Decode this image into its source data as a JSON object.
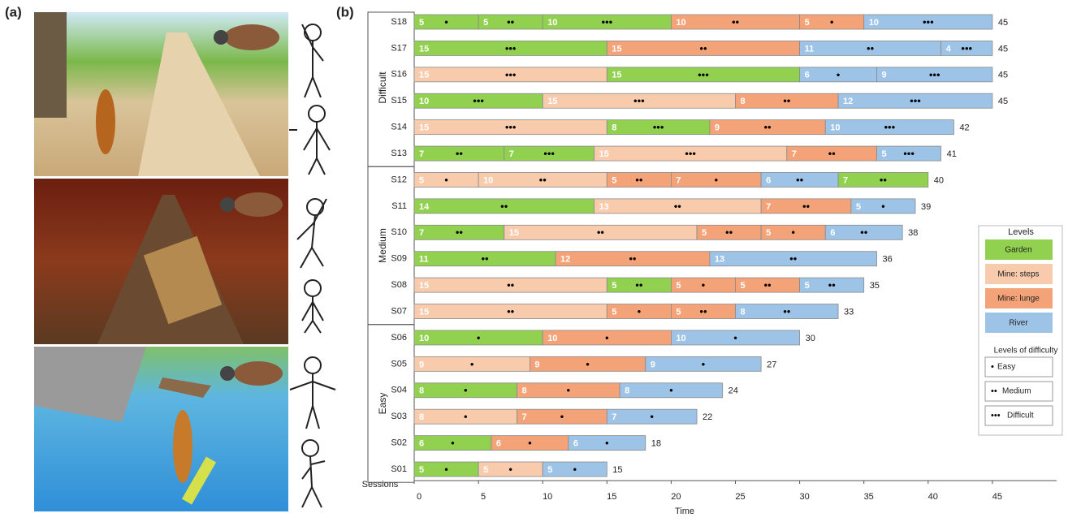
{
  "panels": {
    "a": "(a)",
    "b": "(b)"
  },
  "chart_data": {
    "type": "bar",
    "orientation": "horizontal",
    "stacked": true,
    "categories": [
      "S18",
      "S17",
      "S16",
      "S15",
      "S14",
      "S13",
      "S12",
      "S11",
      "S10",
      "S09",
      "S08",
      "S07",
      "S06",
      "S05",
      "S04",
      "S03",
      "S02",
      "S01"
    ],
    "y_label": "Sessions",
    "x_label": "Time",
    "xlim": [
      0,
      50
    ],
    "xticks": [
      0,
      5,
      10,
      15,
      20,
      25,
      30,
      35,
      40,
      45
    ],
    "levels": [
      {
        "name": "Garden",
        "color": "#92d050"
      },
      {
        "name": "Mine: steps",
        "color": "#f8cbad"
      },
      {
        "name": "Mine: lunge",
        "color": "#f4a378"
      },
      {
        "name": "River",
        "color": "#9dc3e6"
      }
    ],
    "levels_title": "Levels",
    "difficulty_title": "Levels of difficulty",
    "difficulty_legend": [
      {
        "marker": "•",
        "label": "Easy"
      },
      {
        "marker": "••",
        "label": "Medium"
      },
      {
        "marker": "•••",
        "label": "Difficult"
      }
    ],
    "groups": [
      {
        "name": "Difficult",
        "from": "S18",
        "to": "S13"
      },
      {
        "name": "Medium",
        "from": "S12",
        "to": "S07"
      },
      {
        "name": "Easy",
        "from": "S06",
        "to": "S01"
      }
    ],
    "segments": [
      [
        {
          "level": "Garden",
          "value": 5,
          "difficulty": "•"
        },
        {
          "level": "Garden",
          "value": 5,
          "difficulty": "••"
        },
        {
          "level": "Garden",
          "value": 10,
          "difficulty": "•••"
        },
        {
          "level": "Mine: lunge",
          "value": 10,
          "difficulty": "••"
        },
        {
          "level": "Mine: lunge",
          "value": 5,
          "difficulty": "•"
        },
        {
          "level": "River",
          "value": 10,
          "difficulty": "•••"
        }
      ],
      [
        {
          "level": "Garden",
          "value": 15,
          "difficulty": "•••"
        },
        {
          "level": "Mine: lunge",
          "value": 15,
          "difficulty": "••"
        },
        {
          "level": "River",
          "value": 11,
          "difficulty": "••"
        },
        {
          "level": "River",
          "value": 4,
          "difficulty": "•••"
        }
      ],
      [
        {
          "level": "Mine: steps",
          "value": 15,
          "difficulty": "•••"
        },
        {
          "level": "Garden",
          "value": 15,
          "difficulty": "•••"
        },
        {
          "level": "River",
          "value": 6,
          "difficulty": "•"
        },
        {
          "level": "River",
          "value": 9,
          "difficulty": "•••"
        }
      ],
      [
        {
          "level": "Garden",
          "value": 10,
          "difficulty": "•••"
        },
        {
          "level": "Mine: steps",
          "value": 15,
          "difficulty": "•••"
        },
        {
          "level": "Mine: lunge",
          "value": 8,
          "difficulty": "••"
        },
        {
          "level": "River",
          "value": 12,
          "difficulty": "•••"
        }
      ],
      [
        {
          "level": "Mine: steps",
          "value": 15,
          "difficulty": "•••"
        },
        {
          "level": "Garden",
          "value": 8,
          "difficulty": "•••"
        },
        {
          "level": "Mine: lunge",
          "value": 9,
          "difficulty": "••"
        },
        {
          "level": "River",
          "value": 10,
          "difficulty": "•••"
        }
      ],
      [
        {
          "level": "Garden",
          "value": 7,
          "difficulty": "••"
        },
        {
          "level": "Garden",
          "value": 7,
          "difficulty": "•••"
        },
        {
          "level": "Mine: steps",
          "value": 15,
          "difficulty": "•••"
        },
        {
          "level": "Mine: lunge",
          "value": 7,
          "difficulty": "••"
        },
        {
          "level": "River",
          "value": 5,
          "difficulty": "•••"
        }
      ],
      [
        {
          "level": "Mine: steps",
          "value": 5,
          "difficulty": "•"
        },
        {
          "level": "Mine: steps",
          "value": 10,
          "difficulty": "••"
        },
        {
          "level": "Mine: lunge",
          "value": 5,
          "difficulty": "••"
        },
        {
          "level": "Mine: lunge",
          "value": 7,
          "difficulty": "•"
        },
        {
          "level": "River",
          "value": 6,
          "difficulty": "••"
        },
        {
          "level": "Garden",
          "value": 7,
          "difficulty": "••"
        }
      ],
      [
        {
          "level": "Garden",
          "value": 14,
          "difficulty": "••"
        },
        {
          "level": "Mine: steps",
          "value": 13,
          "difficulty": "••"
        },
        {
          "level": "Mine: lunge",
          "value": 7,
          "difficulty": "••"
        },
        {
          "level": "River",
          "value": 5,
          "difficulty": "•"
        }
      ],
      [
        {
          "level": "Garden",
          "value": 7,
          "difficulty": "••"
        },
        {
          "level": "Mine: steps",
          "value": 15,
          "difficulty": "••"
        },
        {
          "level": "Mine: lunge",
          "value": 5,
          "difficulty": "••"
        },
        {
          "level": "Mine: lunge",
          "value": 5,
          "difficulty": "•"
        },
        {
          "level": "River",
          "value": 6,
          "difficulty": "••"
        }
      ],
      [
        {
          "level": "Garden",
          "value": 11,
          "difficulty": "••"
        },
        {
          "level": "Mine: lunge",
          "value": 12,
          "difficulty": "••"
        },
        {
          "level": "River",
          "value": 13,
          "difficulty": "••"
        }
      ],
      [
        {
          "level": "Mine: steps",
          "value": 15,
          "difficulty": "••"
        },
        {
          "level": "Garden",
          "value": 5,
          "difficulty": "••"
        },
        {
          "level": "Mine: lunge",
          "value": 5,
          "difficulty": "•"
        },
        {
          "level": "Mine: lunge",
          "value": 5,
          "difficulty": "••"
        },
        {
          "level": "River",
          "value": 5,
          "difficulty": "••"
        }
      ],
      [
        {
          "level": "Mine: steps",
          "value": 15,
          "difficulty": "••"
        },
        {
          "level": "Mine: lunge",
          "value": 5,
          "difficulty": "•"
        },
        {
          "level": "Mine: lunge",
          "value": 5,
          "difficulty": "••"
        },
        {
          "level": "River",
          "value": 8,
          "difficulty": "••"
        }
      ],
      [
        {
          "level": "Garden",
          "value": 10,
          "difficulty": "•"
        },
        {
          "level": "Mine: lunge",
          "value": 10,
          "difficulty": "•"
        },
        {
          "level": "River",
          "value": 10,
          "difficulty": "•"
        }
      ],
      [
        {
          "level": "Mine: steps",
          "value": 9,
          "difficulty": "•"
        },
        {
          "level": "Mine: lunge",
          "value": 9,
          "difficulty": "•"
        },
        {
          "level": "River",
          "value": 9,
          "difficulty": "•"
        }
      ],
      [
        {
          "level": "Garden",
          "value": 8,
          "difficulty": "•"
        },
        {
          "level": "Mine: lunge",
          "value": 8,
          "difficulty": "•"
        },
        {
          "level": "River",
          "value": 8,
          "difficulty": "•"
        }
      ],
      [
        {
          "level": "Mine: steps",
          "value": 8,
          "difficulty": "•"
        },
        {
          "level": "Mine: lunge",
          "value": 7,
          "difficulty": "•"
        },
        {
          "level": "River",
          "value": 7,
          "difficulty": "•"
        }
      ],
      [
        {
          "level": "Garden",
          "value": 6,
          "difficulty": "•"
        },
        {
          "level": "Mine: lunge",
          "value": 6,
          "difficulty": "•"
        },
        {
          "level": "River",
          "value": 6,
          "difficulty": "•"
        }
      ],
      [
        {
          "level": "Garden",
          "value": 5,
          "difficulty": "•"
        },
        {
          "level": "Mine: steps",
          "value": 5,
          "difficulty": "•"
        },
        {
          "level": "River",
          "value": 5,
          "difficulty": "•"
        }
      ]
    ],
    "totals": [
      45,
      45,
      45,
      45,
      42,
      41,
      40,
      39,
      38,
      36,
      35,
      33,
      30,
      27,
      24,
      22,
      18,
      15
    ]
  }
}
